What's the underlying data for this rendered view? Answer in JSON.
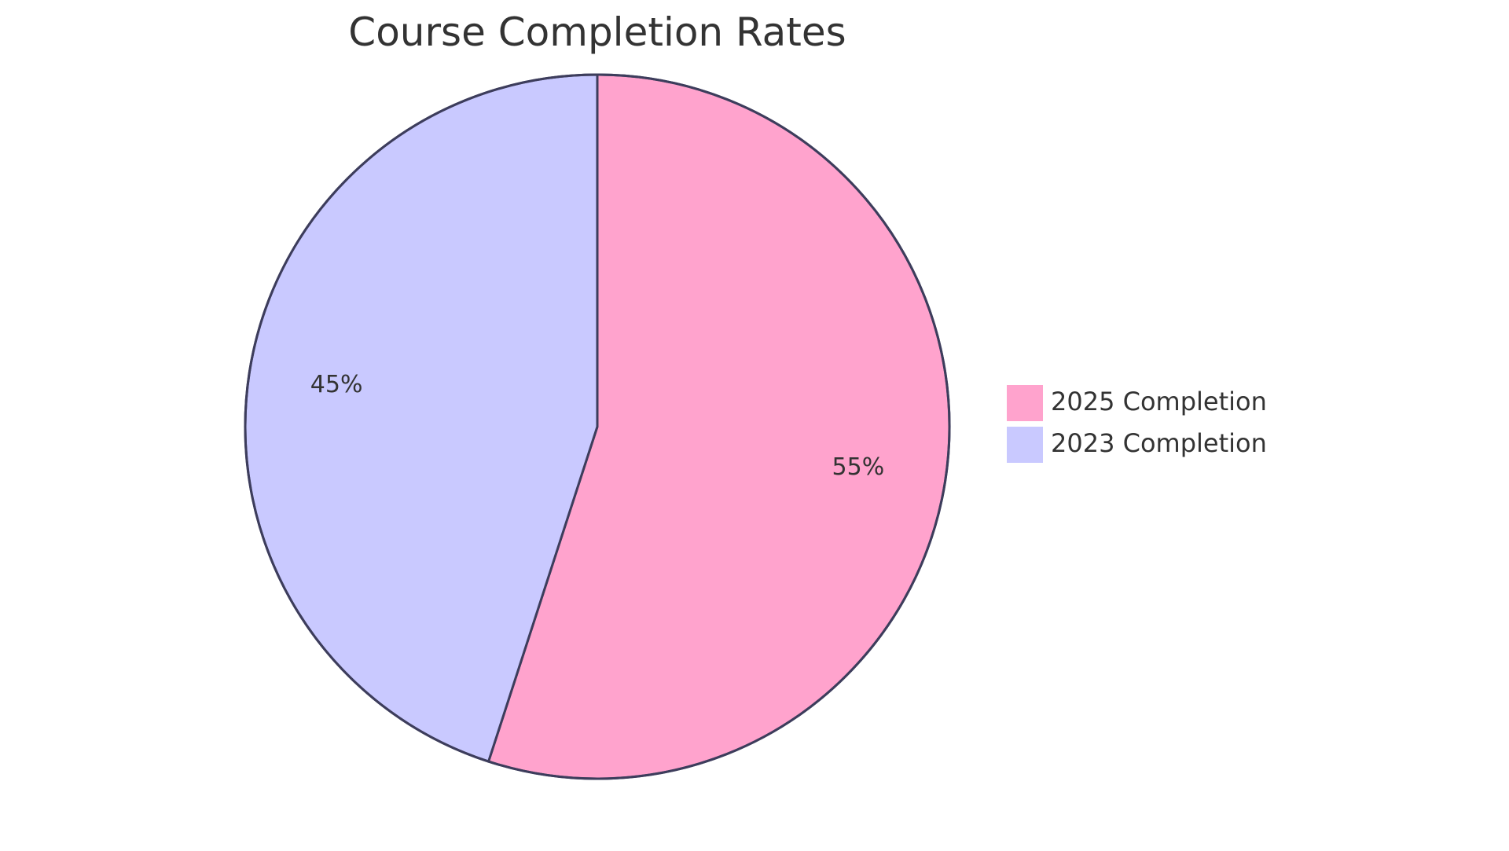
{
  "chart_data": {
    "type": "pie",
    "title": "Course Completion Rates",
    "slices": [
      {
        "name": "2025 Completion",
        "value": 55,
        "label": "55%",
        "color": "#ffa3cd"
      },
      {
        "name": "2023 Completion",
        "value": 45,
        "label": "45%",
        "color": "#c9c9ff"
      }
    ],
    "legend_position": "right",
    "stroke_color": "#3d3d5c",
    "start_angle_deg": 0,
    "direction": "clockwise"
  }
}
